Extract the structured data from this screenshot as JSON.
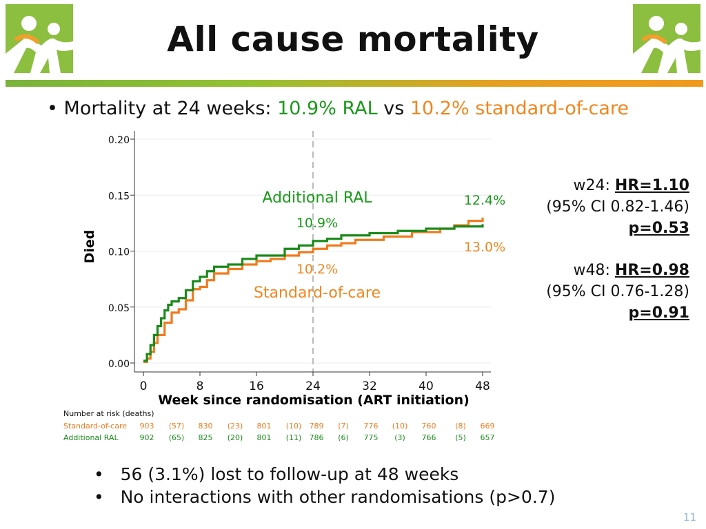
{
  "title": "All cause mortality",
  "bullet_main": {
    "prefix": "Mortality at 24 weeks:",
    "ral": "10.9% RAL",
    "vs": "vs",
    "soc": "10.2% standard-of-care"
  },
  "colors": {
    "ral": "#1a8a1a",
    "soc": "#f07a1e",
    "ral_text": "#1a9a1a",
    "soc_text": "#f0861e"
  },
  "stats": {
    "w24": {
      "label": "w24:",
      "hr": "HR=1.10",
      "ci": "(95% CI 0.82-1.46)",
      "p": "p=0.53"
    },
    "w48": {
      "label": "w48:",
      "hr": "HR=0.98",
      "ci": "(95% CI 0.76-1.28)",
      "p": "p=0.91"
    }
  },
  "chart_data": {
    "type": "line",
    "title": "",
    "xlabel": "Week since randomisation (ART initiation)",
    "ylabel": "Died",
    "xlim": [
      0,
      48
    ],
    "ylim": [
      0,
      0.2
    ],
    "xticks": [
      0,
      8,
      16,
      24,
      32,
      40,
      48
    ],
    "yticks": [
      "0.00",
      "0.05",
      "0.10",
      "0.15",
      "0.20"
    ],
    "reference_week": 24,
    "series": [
      {
        "name": "Additional RAL",
        "points": [
          [
            0,
            0.002
          ],
          [
            0.5,
            0.008
          ],
          [
            1,
            0.016
          ],
          [
            1.5,
            0.025
          ],
          [
            2,
            0.033
          ],
          [
            2.5,
            0.04
          ],
          [
            3,
            0.047
          ],
          [
            3.5,
            0.052
          ],
          [
            4,
            0.055
          ],
          [
            5,
            0.058
          ],
          [
            6,
            0.065
          ],
          [
            7,
            0.073
          ],
          [
            8,
            0.077
          ],
          [
            9,
            0.082
          ],
          [
            10,
            0.086
          ],
          [
            12,
            0.088
          ],
          [
            14,
            0.093
          ],
          [
            16,
            0.096
          ],
          [
            20,
            0.102
          ],
          [
            22,
            0.105
          ],
          [
            24,
            0.109
          ],
          [
            26,
            0.111
          ],
          [
            28,
            0.114
          ],
          [
            32,
            0.116
          ],
          [
            36,
            0.118
          ],
          [
            40,
            0.12
          ],
          [
            44,
            0.122
          ],
          [
            48,
            0.124
          ]
        ]
      },
      {
        "name": "Standard-of-care",
        "points": [
          [
            0,
            0.001
          ],
          [
            0.5,
            0.004
          ],
          [
            1,
            0.01
          ],
          [
            1.5,
            0.018
          ],
          [
            2,
            0.025
          ],
          [
            3,
            0.036
          ],
          [
            4,
            0.045
          ],
          [
            5,
            0.048
          ],
          [
            6,
            0.056
          ],
          [
            7,
            0.066
          ],
          [
            8,
            0.068
          ],
          [
            9,
            0.074
          ],
          [
            10,
            0.08
          ],
          [
            12,
            0.084
          ],
          [
            14,
            0.088
          ],
          [
            16,
            0.091
          ],
          [
            18,
            0.093
          ],
          [
            20,
            0.096
          ],
          [
            22,
            0.099
          ],
          [
            24,
            0.102
          ],
          [
            26,
            0.105
          ],
          [
            28,
            0.107
          ],
          [
            30,
            0.11
          ],
          [
            34,
            0.113
          ],
          [
            38,
            0.117
          ],
          [
            42,
            0.12
          ],
          [
            44,
            0.123
          ],
          [
            46,
            0.127
          ],
          [
            48,
            0.13
          ]
        ]
      }
    ],
    "annotations": [
      {
        "text": "Additional RAL",
        "series": "Additional RAL"
      },
      {
        "text": "10.9%",
        "series": "Additional RAL"
      },
      {
        "text": "12.4%",
        "series": "Additional RAL"
      },
      {
        "text": "10.2%",
        "series": "Standard-of-care"
      },
      {
        "text": "Standard-of-care",
        "series": "Standard-of-care"
      },
      {
        "text": "13.0%",
        "series": "Standard-of-care"
      }
    ],
    "risk_table": {
      "header": "Number at risk (deaths)",
      "rows": [
        {
          "name": "Standard-of-care",
          "cells": [
            "903",
            "(57)",
            "830",
            "(23)",
            "801",
            "(10)",
            "789",
            "(7)",
            "776",
            "(10)",
            "760",
            "(8)",
            "669"
          ]
        },
        {
          "name": "Additional RAL",
          "cells": [
            "902",
            "(65)",
            "825",
            "(20)",
            "801",
            "(11)",
            "786",
            "(6)",
            "775",
            "(3)",
            "766",
            "(5)",
            "657"
          ]
        }
      ]
    }
  },
  "bottom_bullets": [
    "56 (3.1%) lost to follow-up at 48 weeks",
    "No interactions with other randomisations (p>0.7)"
  ],
  "page_number": "11"
}
